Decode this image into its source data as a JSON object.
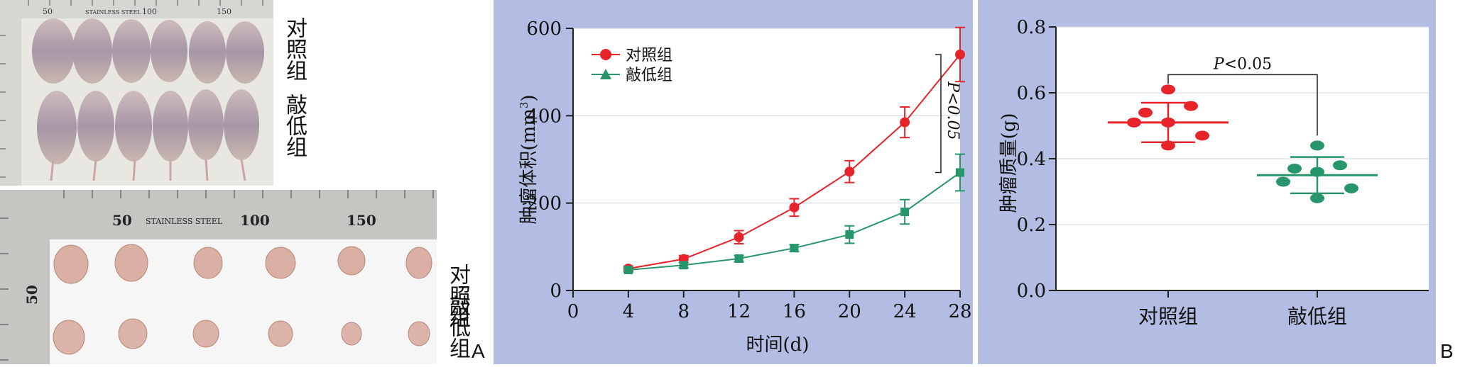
{
  "figure": {
    "panel_a_letter": "A",
    "panel_b_letter": "B",
    "mice_photo": {
      "label_top": "对照组",
      "label_bottom": "敲低组",
      "ruler_numbers": [
        "50",
        "STAINLESS STEEL",
        "100",
        "150"
      ]
    },
    "tumor_photo": {
      "label_top": "对照组",
      "label_bottom": "敲低组",
      "ruler_text_steel": "STAINLESS STEEL",
      "ruler_50": "50",
      "ruler_100": "100",
      "ruler_150": "150"
    }
  },
  "chart_data": [
    {
      "type": "line",
      "xlabel": "时间(d)",
      "ylabel": "肿瘤体积(mm³)",
      "ylabel_main": "肿瘤体积(mm",
      "ylabel_sup": "3",
      "ylabel_close": ")",
      "xlim": [
        0,
        28
      ],
      "ylim": [
        0,
        600
      ],
      "xticks": [
        "0",
        "4",
        "8",
        "12",
        "16",
        "20",
        "24",
        "28"
      ],
      "yticks": [
        "0",
        "200",
        "400",
        "600"
      ],
      "grid": true,
      "legend_position": "top-left",
      "annotation": "P<0.05",
      "x": [
        4,
        8,
        12,
        16,
        20,
        24,
        28
      ],
      "series": [
        {
          "name": "对照组",
          "color": "#e8242b",
          "marker": "circle",
          "values": [
            50,
            72,
            122,
            190,
            272,
            385,
            540
          ],
          "errors": [
            6,
            8,
            15,
            20,
            25,
            35,
            62
          ]
        },
        {
          "name": "敲低组",
          "color": "#27966b",
          "marker": "square",
          "values": [
            47,
            58,
            73,
            97,
            128,
            180,
            270
          ],
          "errors": [
            5,
            6,
            7,
            8,
            20,
            28,
            42
          ]
        }
      ]
    },
    {
      "type": "scatter",
      "ylabel": "肿瘤质量(g)",
      "ylim": [
        0,
        0.8
      ],
      "yticks": [
        "0.0",
        "0.2",
        "0.4",
        "0.6",
        "0.8"
      ],
      "categories": [
        "对照组",
        "敲低组"
      ],
      "grid": true,
      "annotation": "P<0.05",
      "annotation_italic": "P",
      "annotation_rest": "<0.05",
      "groups": [
        {
          "name": "对照组",
          "color": "#e8242b",
          "mean": 0.51,
          "sd": 0.06,
          "points": [
            0.61,
            0.56,
            0.54,
            0.51,
            0.51,
            0.47,
            0.44
          ]
        },
        {
          "name": "敲低组",
          "color": "#27966b",
          "mean": 0.35,
          "sd": 0.055,
          "points": [
            0.44,
            0.38,
            0.37,
            0.36,
            0.33,
            0.31,
            0.28
          ]
        }
      ]
    }
  ]
}
